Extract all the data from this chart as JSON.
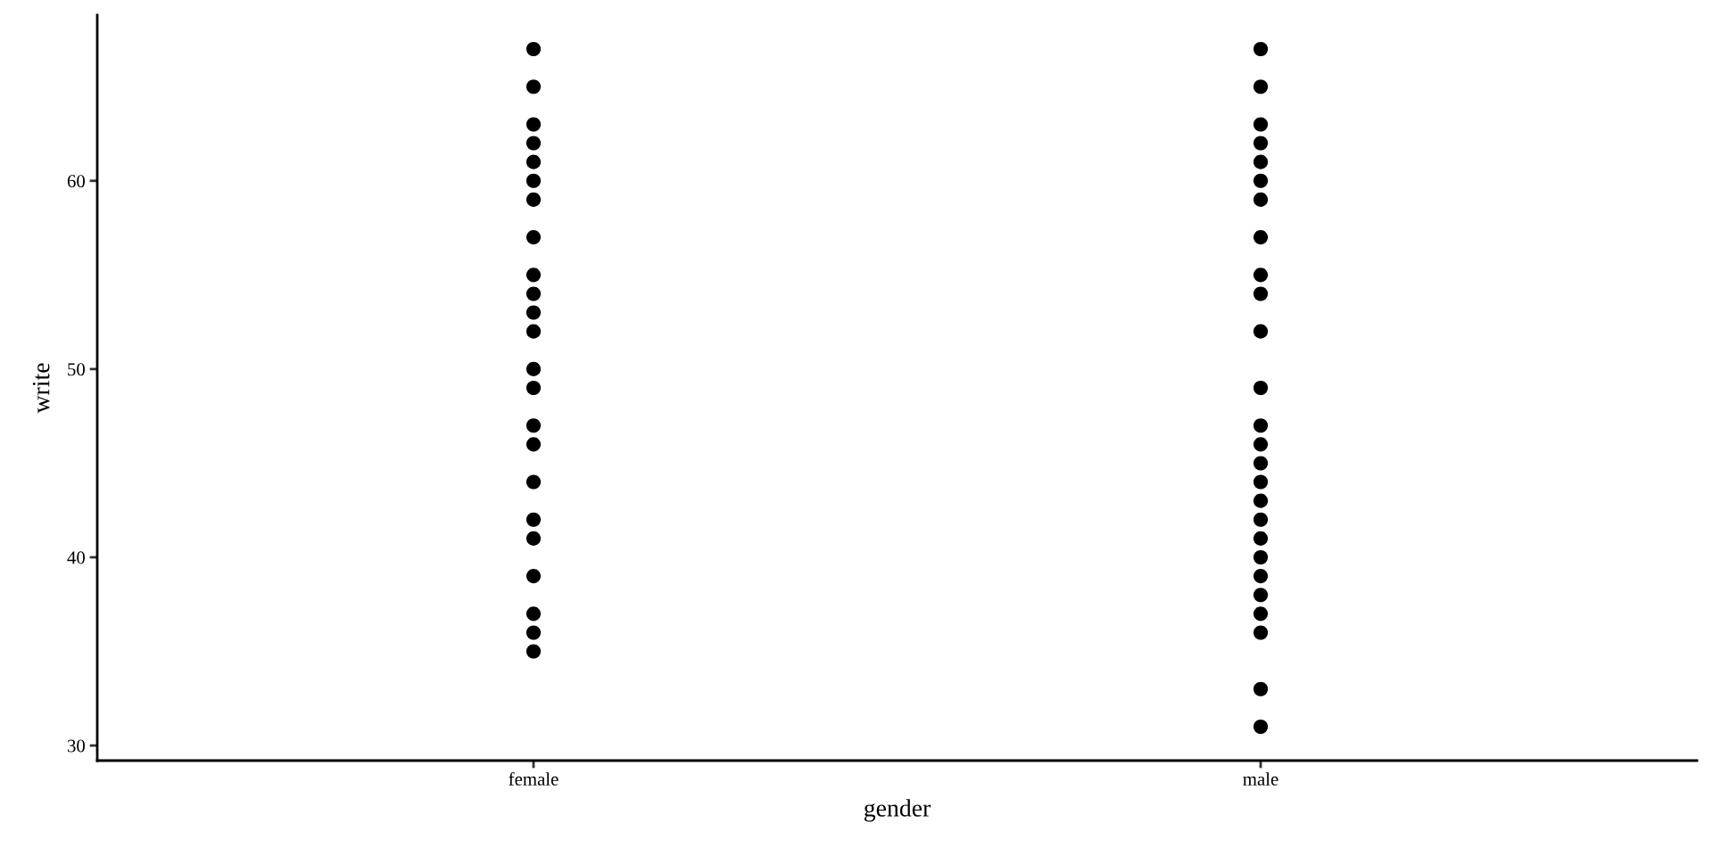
{
  "chart_data": {
    "type": "scatter",
    "xlabel": "gender",
    "ylabel": "write",
    "categories": [
      "female",
      "male"
    ],
    "series": [
      {
        "color": "#000000",
        "x": [
          "female",
          "female",
          "female",
          "female",
          "female",
          "female",
          "female",
          "female",
          "female",
          "female",
          "female",
          "female",
          "female",
          "female",
          "female",
          "female",
          "female",
          "female",
          "female",
          "female",
          "female",
          "female",
          "female"
        ],
        "values": [
          67,
          65,
          63,
          62,
          61,
          60,
          59,
          57,
          55,
          54,
          53,
          52,
          50,
          49,
          47,
          46,
          44,
          42,
          41,
          39,
          37,
          36,
          35
        ]
      },
      {
        "color": "#000000",
        "x": [
          "male",
          "male",
          "male",
          "male",
          "male",
          "male",
          "male",
          "male",
          "male",
          "male",
          "male",
          "male",
          "male",
          "male",
          "male",
          "male",
          "male",
          "male",
          "male",
          "male",
          "male",
          "male",
          "male",
          "male",
          "male",
          "male"
        ],
        "values": [
          67,
          65,
          63,
          62,
          61,
          60,
          59,
          57,
          55,
          54,
          52,
          49,
          47,
          46,
          45,
          44,
          43,
          42,
          41,
          40,
          39,
          38,
          37,
          36,
          33,
          31
        ]
      }
    ],
    "ylim": [
      29.2,
      68.8
    ],
    "yticks": [
      30,
      40,
      50,
      60
    ],
    "marker": "circle"
  }
}
